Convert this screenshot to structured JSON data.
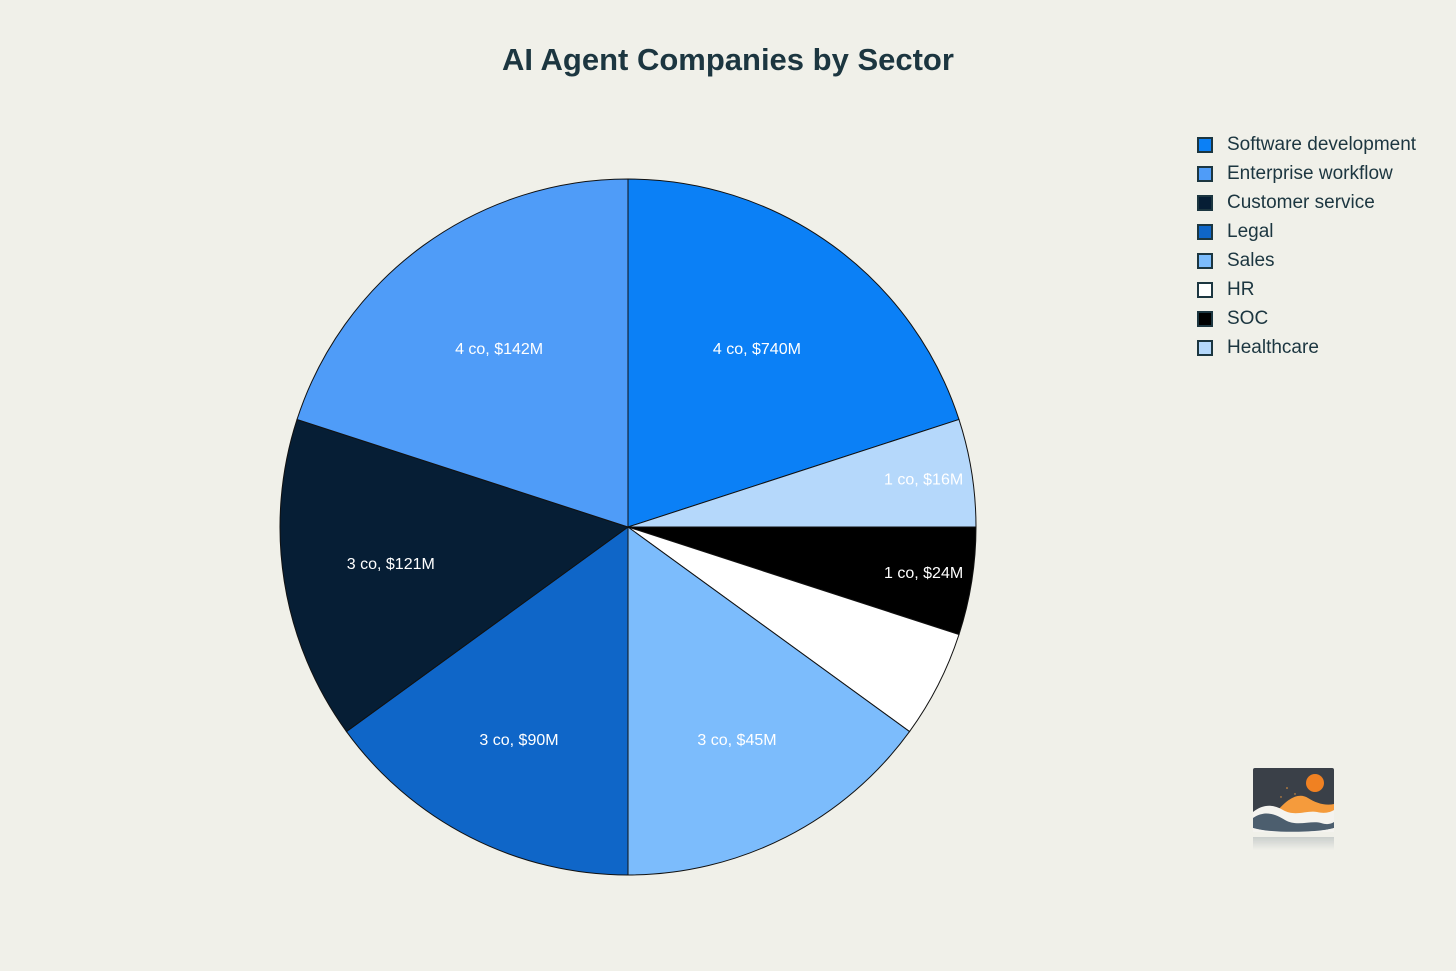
{
  "title": "AI Agent Companies by Sector",
  "colors": {
    "background": "#f0f0e9",
    "ink": "#1c3640",
    "slice_outline": "#111111",
    "slice_label_text": "#ffffff"
  },
  "chart_data": {
    "type": "pie",
    "title": "AI Agent Companies by Sector",
    "legend_position": "right",
    "start_angle_deg_from_top": 0,
    "direction": "clockwise",
    "slices": [
      {
        "name": "Software development",
        "companies": 4,
        "funding_musd": 740,
        "label": "4 co, $740M",
        "color": "#0b80f6",
        "start_deg": 0,
        "span_deg": 72,
        "label_r": 0.63
      },
      {
        "name": "Healthcare",
        "companies": 1,
        "funding_musd": 16,
        "label": "1 co, $16M",
        "color": "#b5d8fb",
        "start_deg": 72,
        "span_deg": 18,
        "label_r": 0.86
      },
      {
        "name": "SOC",
        "companies": 1,
        "funding_musd": 24,
        "label": "1 co, $24M",
        "color": "#000000",
        "start_deg": 90,
        "span_deg": 18,
        "label_r": 0.86
      },
      {
        "name": "HR",
        "companies": 1,
        "label": "",
        "color": "#ffffff",
        "start_deg": 108,
        "span_deg": 18,
        "label_r": 0.69
      },
      {
        "name": "Sales",
        "companies": 3,
        "funding_musd": 45,
        "label": "3 co, $45M",
        "color": "#7cbcfc",
        "start_deg": 126,
        "span_deg": 54,
        "label_r": 0.69
      },
      {
        "name": "Legal",
        "companies": 3,
        "funding_musd": 90,
        "label": "3 co, $90M",
        "color": "#0f66c8",
        "start_deg": 180,
        "span_deg": 54,
        "label_r": 0.69
      },
      {
        "name": "Customer service",
        "companies": 3,
        "funding_musd": 121,
        "label": "3 co, $121M",
        "color": "#061e35",
        "start_deg": 234,
        "span_deg": 54,
        "label_r": 0.69
      },
      {
        "name": "Enterprise workflow",
        "companies": 4,
        "funding_musd": 142,
        "label": "4 co, $142M",
        "color": "#4f9cf8",
        "start_deg": 288,
        "span_deg": 72,
        "label_r": 0.63
      }
    ],
    "legend": [
      {
        "label": "Software development",
        "color": "#0b80f6"
      },
      {
        "label": "Enterprise workflow",
        "color": "#4f9cf8"
      },
      {
        "label": "Customer service",
        "color": "#061e35"
      },
      {
        "label": "Legal",
        "color": "#0f66c8"
      },
      {
        "label": "Sales",
        "color": "#7cbcfc"
      },
      {
        "label": "HR",
        "color": "#ffffff"
      },
      {
        "label": "SOC",
        "color": "#000000"
      },
      {
        "label": "Healthcare",
        "color": "#b5d8fb"
      }
    ]
  },
  "logo": {
    "description": "abstract-landscape-logo",
    "sky_color": "#3a4048",
    "sun_color": "#f08122",
    "dune_color": "#f59b3c",
    "wave_color": "#4c5e6e",
    "foreground_color": "#f4f3ef"
  }
}
